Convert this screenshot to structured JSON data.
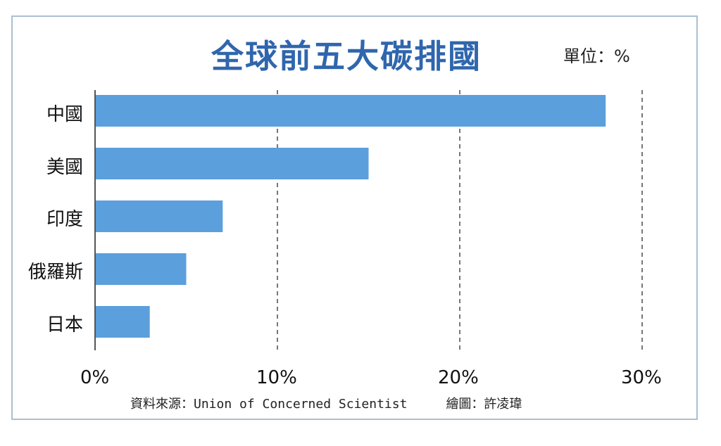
{
  "chart_data": {
    "type": "bar",
    "orientation": "horizontal",
    "title": "全球前五大碳排國",
    "unit_label": "單位：%",
    "categories": [
      "中國",
      "美國",
      "印度",
      "俄羅斯",
      "日本"
    ],
    "values": [
      28,
      15,
      7,
      5,
      3
    ],
    "xlim": [
      0,
      30
    ],
    "x_ticks": [
      "0%",
      "10%",
      "20%",
      "30%"
    ],
    "grid": true,
    "bar_color": "#5b9fdd"
  },
  "footer": {
    "source": "資料來源：Union of Concerned Scientist",
    "credit": "繪圖：許凌瑋"
  }
}
